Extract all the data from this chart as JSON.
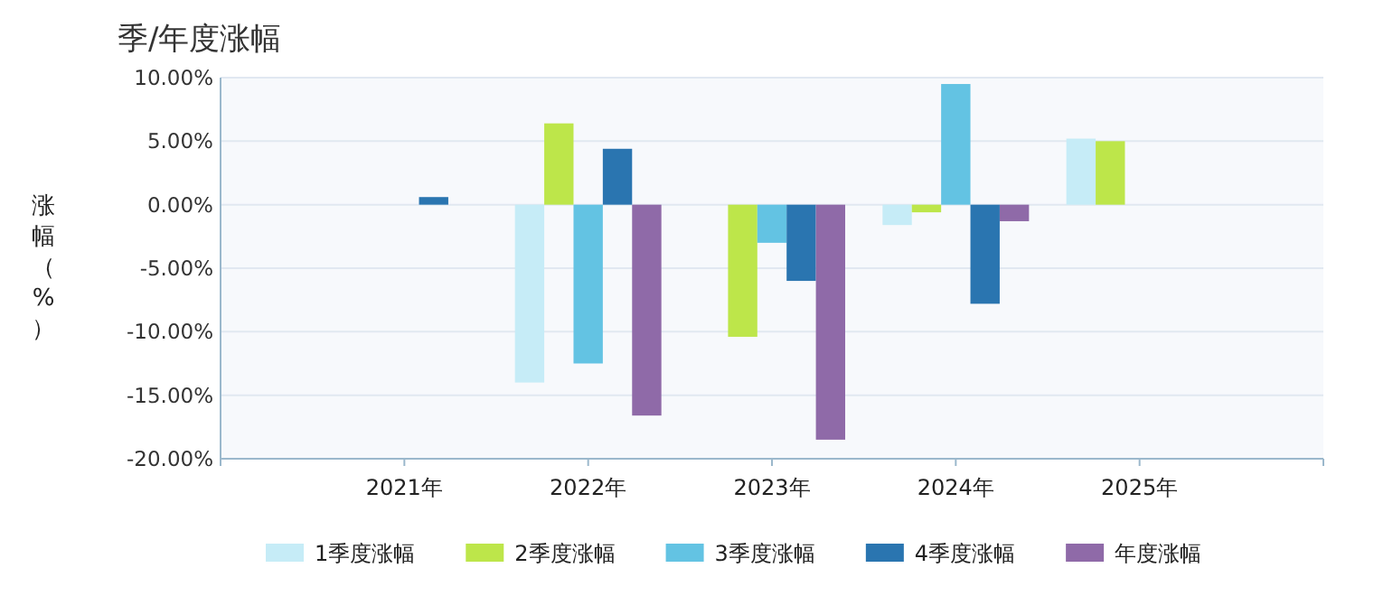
{
  "chart_data": {
    "type": "bar",
    "title": "季/年度涨幅",
    "ylabel": "涨幅（%）",
    "categories": [
      "2021年",
      "2022年",
      "2023年",
      "2024年",
      "2025年"
    ],
    "series": [
      {
        "name": "1季度涨幅",
        "color": "#c6ecf7",
        "values": [
          null,
          -14.0,
          null,
          -1.6,
          5.2
        ]
      },
      {
        "name": "2季度涨幅",
        "color": "#bde64a",
        "values": [
          null,
          6.4,
          -10.4,
          -0.6,
          5.0
        ]
      },
      {
        "name": "3季度涨幅",
        "color": "#63c3e3",
        "values": [
          null,
          -12.5,
          -3.0,
          9.5,
          null
        ]
      },
      {
        "name": "4季度涨幅",
        "color": "#2a75b0",
        "values": [
          0.6,
          4.4,
          -6.0,
          -7.8,
          null
        ]
      },
      {
        "name": "年度涨幅",
        "color": "#8f6aa8",
        "values": [
          null,
          -16.6,
          -18.5,
          -1.3,
          null
        ]
      }
    ],
    "ylim": [
      -20,
      10
    ],
    "yticks": [
      {
        "value": -20,
        "label": "-20.00%"
      },
      {
        "value": -15,
        "label": "-15.00%"
      },
      {
        "value": -10,
        "label": "-10.00%"
      },
      {
        "value": -5,
        "label": "-5.00%"
      },
      {
        "value": 0,
        "label": "0.00%"
      },
      {
        "value": 5,
        "label": "5.00%"
      },
      {
        "value": 10,
        "label": "10.00%"
      }
    ],
    "grid": "y",
    "legend": "bottom"
  }
}
